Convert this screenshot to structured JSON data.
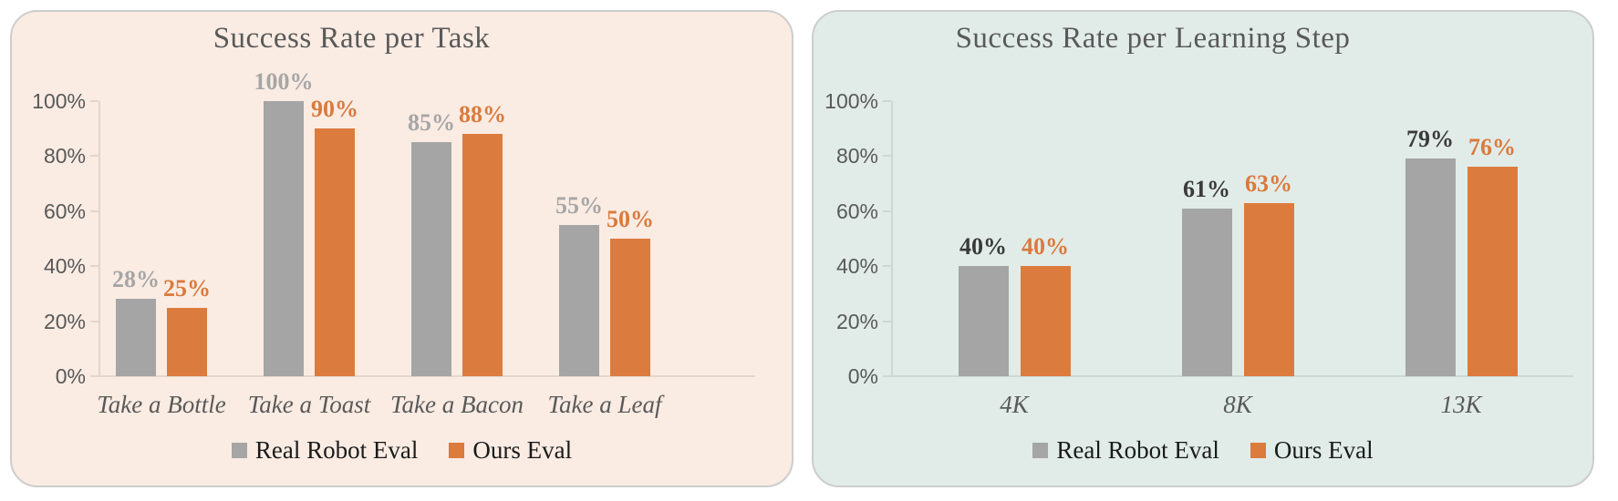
{
  "page_background": "#ffffff",
  "card_border_color": "#CDCDCD",
  "chart_data": [
    {
      "type": "bar",
      "title": "Success Rate per Task",
      "categories": [
        "Take a Bottle",
        "Take a Toast",
        "Take a Bacon",
        "Take a Leaf"
      ],
      "series": [
        {
          "name": "Real Robot Eval",
          "color": "#A5A5A5",
          "label_color": "#A6A6A6",
          "values": [
            28,
            100,
            85,
            55
          ],
          "labels": [
            "28%",
            "100%",
            "85%",
            "55%"
          ]
        },
        {
          "name": "Ours Eval",
          "color": "#DC7B3E",
          "label_color": "#DB7A3C",
          "values": [
            25,
            90,
            88,
            50
          ],
          "labels": [
            "25%",
            "90%",
            "88%",
            "50%"
          ]
        }
      ],
      "y_ticks": [
        "100%",
        "80%",
        "60%",
        "40%",
        "20%",
        "0%"
      ],
      "ylim": [
        0,
        100
      ],
      "grid": false,
      "legend_position": "bottom",
      "panel_background": "#FAECE3",
      "axis_color": "#E3D6CB",
      "title_color": "#595959",
      "category_label_style": "italic",
      "xlabel": "",
      "ylabel": ""
    },
    {
      "type": "bar",
      "title": "Success Rate per Learning Step",
      "categories": [
        "4K",
        "8K",
        "13K"
      ],
      "series": [
        {
          "name": "Real Robot Eval",
          "color": "#A5A5A5",
          "label_color": "#3A3A3A",
          "values": [
            40,
            61,
            79
          ],
          "labels": [
            "40%",
            "61%",
            "79%"
          ]
        },
        {
          "name": "Ours Eval",
          "color": "#DC7B3E",
          "label_color": "#DB7A3C",
          "values": [
            40,
            63,
            76
          ],
          "labels": [
            "40%",
            "63%",
            "76%"
          ]
        }
      ],
      "y_ticks": [
        "100%",
        "80%",
        "60%",
        "40%",
        "20%",
        "0%"
      ],
      "ylim": [
        0,
        100
      ],
      "grid": false,
      "legend_position": "bottom",
      "panel_background": "#E1ECE9",
      "axis_color": "#CBD8D3",
      "title_color": "#595959",
      "category_label_style": "italic",
      "xlabel": "",
      "ylabel": ""
    }
  ]
}
